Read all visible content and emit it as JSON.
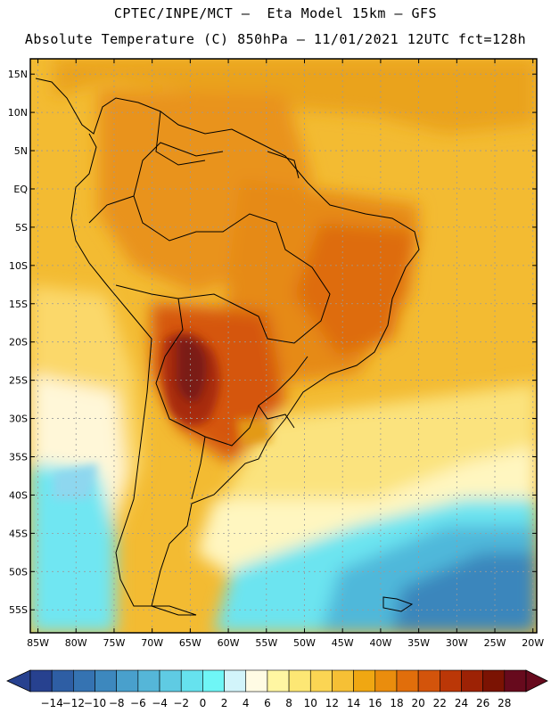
{
  "header": {
    "line1": "CPTEC/INPE/MCT –  Eta Model 15km – GFS",
    "line2": "Absolute Temperature (C) 850hPa – 11/01/2021 12UTC fct=128h"
  },
  "map": {
    "lon_min": -86,
    "lon_max": -19.5,
    "lat_min": -58,
    "lat_max": 17,
    "lat_ticks": [
      "15N",
      "10N",
      "5N",
      "EQ",
      "5S",
      "10S",
      "15S",
      "20S",
      "25S",
      "30S",
      "35S",
      "40S",
      "45S",
      "50S",
      "55S"
    ],
    "lat_values": [
      15,
      10,
      5,
      0,
      -5,
      -10,
      -15,
      -20,
      -25,
      -30,
      -35,
      -40,
      -45,
      -50,
      -55
    ],
    "lon_ticks": [
      "85W",
      "80W",
      "75W",
      "70W",
      "65W",
      "60W",
      "55W",
      "50W",
      "45W",
      "40W",
      "35W",
      "30W",
      "25W",
      "20W"
    ],
    "lon_values": [
      -85,
      -80,
      -75,
      -70,
      -65,
      -60,
      -55,
      -50,
      -45,
      -40,
      -35,
      -30,
      -25,
      -20
    ]
  },
  "colorbar": {
    "labels": [
      "-14",
      "-12",
      "-10",
      "-8",
      "-6",
      "-4",
      "-2",
      "0",
      "2",
      "4",
      "6",
      "8",
      "10",
      "12",
      "14",
      "16",
      "18",
      "20",
      "22",
      "24",
      "26",
      "28"
    ],
    "colors": [
      "#27418f",
      "#2e5ea4",
      "#3573b2",
      "#3d88be",
      "#49a0cc",
      "#55b6d8",
      "#5fcbe3",
      "#66e2ee",
      "#6ff6f6",
      "#d2f4fa",
      "#fffbe4",
      "#fff6a2",
      "#fde774",
      "#fbd553",
      "#f6c035",
      "#f0a712",
      "#ea8d0d",
      "#e16e0b",
      "#d3540b",
      "#bb3707",
      "#9d2205",
      "#7b1303",
      "#670a1d"
    ]
  }
}
